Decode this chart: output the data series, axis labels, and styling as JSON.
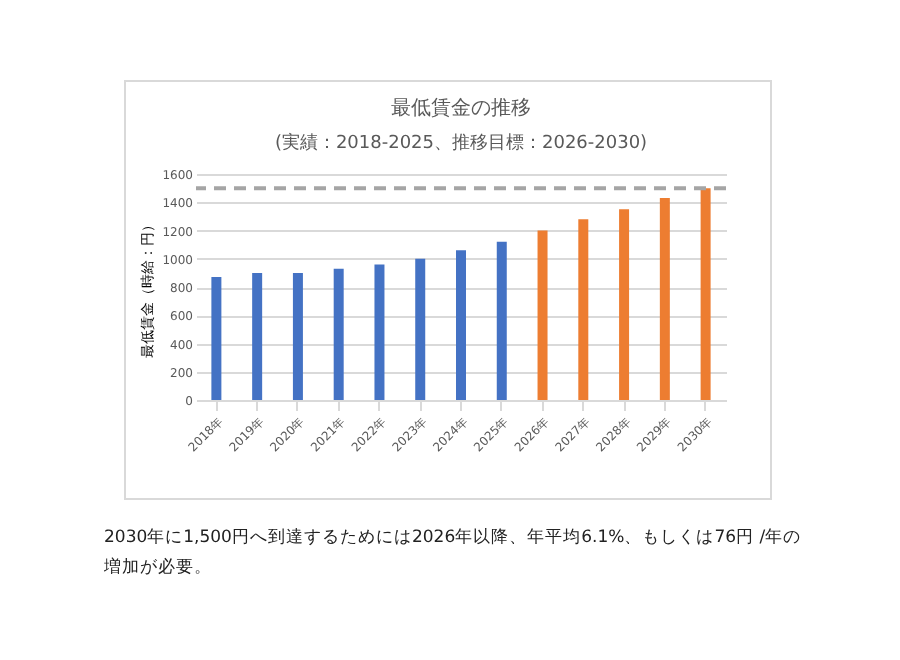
{
  "chart_data": {
    "type": "bar",
    "title": "最低賃金の推移",
    "subtitle": "(実績：2018-2025、推移目標：2026-2030)",
    "ylabel": "最低賃金（時給：円）",
    "categories": [
      "2018年",
      "2019年",
      "2020年",
      "2021年",
      "2022年",
      "2023年",
      "2024年",
      "2025年",
      "2026年",
      "2027年",
      "2028年",
      "2029年",
      "2030年"
    ],
    "series": [
      {
        "color": "#4472c4",
        "values": [
          870,
          900,
          900,
          930,
          960,
          1000,
          1060,
          1120,
          null,
          null,
          null,
          null,
          null
        ]
      },
      {
        "color": "#ed7d31",
        "values": [
          null,
          null,
          null,
          null,
          null,
          null,
          null,
          null,
          1200,
          1280,
          1350,
          1430,
          1500
        ]
      }
    ],
    "ylim": [
      0,
      1600
    ],
    "yticks": [
      0,
      200,
      400,
      600,
      800,
      1000,
      1200,
      1400,
      1600
    ],
    "grid": "y",
    "legend": false,
    "ref_lines": [
      {
        "axis": "y",
        "value": 1500,
        "color": "#a5a5a5",
        "line_style": "dashed"
      }
    ],
    "annotations": [
      "2030年に1,500円へ到達するためには2026年以降、年平均6.1%、もしくは76円 /年の増加が必要。"
    ]
  }
}
